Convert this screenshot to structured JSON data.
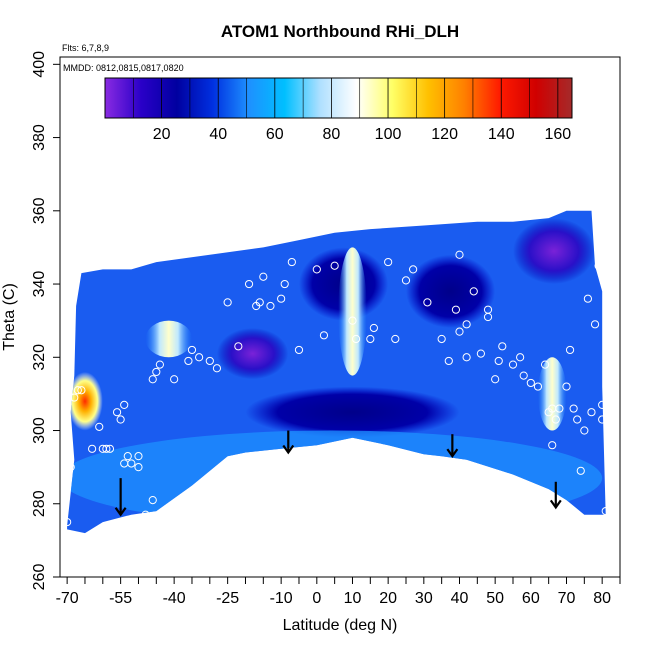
{
  "chart_data": {
    "type": "heatmap",
    "title": "ATOM1 Northbound RHi_DLH",
    "annotations": {
      "flights": "Flts: 6,7,8,9",
      "dates": "MMDD: 0812,0815,0817,0820"
    },
    "xlabel": "Latitude (deg N)",
    "ylabel": "Theta (C)",
    "xlim": [
      -72,
      85
    ],
    "ylim": [
      260,
      402
    ],
    "xticks": [
      -70,
      -55,
      -40,
      -25,
      -10,
      0,
      10,
      20,
      30,
      40,
      50,
      60,
      70,
      80
    ],
    "xtick_labels": [
      "-70",
      "-55",
      "-40",
      "-25",
      "-10",
      "0",
      "10",
      "20",
      "30",
      "40",
      "50",
      "60",
      "70",
      "80"
    ],
    "xminor_ticks": [
      -65,
      -60,
      -50,
      -45,
      -35,
      -30,
      -20,
      -15,
      -5,
      5,
      15,
      25,
      35,
      45,
      55,
      65,
      75,
      85
    ],
    "yticks": [
      260,
      280,
      300,
      320,
      340,
      360,
      380,
      400
    ],
    "ytick_labels": [
      "260",
      "280",
      "300",
      "320",
      "340",
      "360",
      "380",
      "400"
    ],
    "colorbar": {
      "min": 0,
      "max": 165,
      "ticks": [
        20,
        40,
        60,
        80,
        100,
        120,
        140,
        160
      ],
      "tick_labels": [
        "20",
        "40",
        "60",
        "80",
        "100",
        "120",
        "140",
        "160"
      ],
      "colors": [
        "#8a2be2",
        "#2a00c8",
        "#0000a0",
        "#0030e0",
        "#1e90ff",
        "#00bfff",
        "#b0e0ff",
        "#ffffff",
        "#ffff66",
        "#ffc000",
        "#ff8000",
        "#ff1a00",
        "#d00000",
        "#a52a2a"
      ]
    },
    "field_outline": {
      "top": [
        [
          -68,
          315
        ],
        [
          -67.5,
          334
        ],
        [
          -66,
          343
        ],
        [
          -60,
          344
        ],
        [
          -52,
          344
        ],
        [
          -45,
          346
        ],
        [
          -30,
          348
        ],
        [
          -15,
          350
        ],
        [
          -5,
          352
        ],
        [
          5,
          354
        ],
        [
          15,
          355
        ],
        [
          30,
          356
        ],
        [
          45,
          357
        ],
        [
          55,
          357
        ],
        [
          65,
          358
        ],
        [
          70,
          360
        ],
        [
          77,
          360
        ],
        [
          78,
          345
        ],
        [
          80,
          338
        ],
        [
          80,
          312
        ]
      ],
      "bottom": [
        [
          80,
          312
        ],
        [
          81,
          277
        ],
        [
          75,
          277
        ],
        [
          70,
          281
        ],
        [
          65,
          284
        ],
        [
          55,
          288
        ],
        [
          42,
          292
        ],
        [
          35,
          293
        ],
        [
          30,
          293.5
        ],
        [
          20,
          296
        ],
        [
          10,
          298
        ],
        [
          0,
          296
        ],
        [
          -10,
          295
        ],
        [
          -20,
          294
        ],
        [
          -25,
          293
        ],
        [
          -35,
          285
        ],
        [
          -45,
          278
        ],
        [
          -52,
          277
        ],
        [
          -60,
          275
        ],
        [
          -65,
          272
        ],
        [
          -70,
          273
        ],
        [
          -70,
          274
        ],
        [
          -68,
          292
        ],
        [
          -69,
          305
        ],
        [
          -68,
          315
        ]
      ]
    },
    "field_features": [
      {
        "kind": "low-rhi",
        "x": [
          -28,
          -8
        ],
        "y": [
          314,
          328
        ],
        "value": 5
      },
      {
        "kind": "low-rhi",
        "x": [
          -20,
          40
        ],
        "y": [
          298,
          312
        ],
        "value": 12
      },
      {
        "kind": "low-rhi",
        "x": [
          -5,
          20
        ],
        "y": [
          330,
          350
        ],
        "value": 18
      },
      {
        "kind": "low-rhi",
        "x": [
          25,
          50
        ],
        "y": [
          328,
          348
        ],
        "value": 18
      },
      {
        "kind": "low-rhi",
        "x": [
          55,
          78
        ],
        "y": [
          340,
          358
        ],
        "value": 8
      },
      {
        "kind": "moderate",
        "x": [
          -72,
          80
        ],
        "y": [
          274,
          300
        ],
        "value": 55
      },
      {
        "kind": "near-saturation",
        "x": [
          6,
          14
        ],
        "y": [
          315,
          350
        ],
        "value": 100
      },
      {
        "kind": "near-saturation",
        "x": [
          -48,
          -35
        ],
        "y": [
          320,
          330
        ],
        "value": 105
      },
      {
        "kind": "supersaturated",
        "x": [
          -70,
          -60
        ],
        "y": [
          300,
          316
        ],
        "value": 150
      },
      {
        "kind": "near-saturation",
        "x": [
          62,
          70
        ],
        "y": [
          300,
          320
        ],
        "value": 95
      }
    ],
    "sample_points": [
      [
        -70,
        275
      ],
      [
        -69,
        290
      ],
      [
        -68,
        309
      ],
      [
        -67,
        311
      ],
      [
        -66,
        311
      ],
      [
        -63,
        295
      ],
      [
        -61,
        301
      ],
      [
        -60,
        295
      ],
      [
        -59,
        295
      ],
      [
        -58,
        295
      ],
      [
        -56,
        305
      ],
      [
        -55,
        303
      ],
      [
        -54,
        307
      ],
      [
        -54,
        291
      ],
      [
        -53,
        293
      ],
      [
        -52,
        291
      ],
      [
        -50,
        290
      ],
      [
        -50,
        293
      ],
      [
        -48,
        277
      ],
      [
        -46,
        281
      ],
      [
        -44,
        276
      ],
      [
        -42,
        275
      ],
      [
        -46,
        314
      ],
      [
        -45,
        316
      ],
      [
        -44,
        318
      ],
      [
        -40,
        314
      ],
      [
        -36,
        319
      ],
      [
        -35,
        322
      ],
      [
        -33,
        320
      ],
      [
        -30,
        319
      ],
      [
        -28,
        317
      ],
      [
        -25,
        335
      ],
      [
        -22,
        323
      ],
      [
        -19,
        340
      ],
      [
        -17,
        334
      ],
      [
        -16,
        335
      ],
      [
        -15,
        342
      ],
      [
        -13,
        334
      ],
      [
        -10,
        336
      ],
      [
        -9,
        340
      ],
      [
        -7,
        346
      ],
      [
        -5,
        322
      ],
      [
        0,
        344
      ],
      [
        2,
        326
      ],
      [
        5,
        345
      ],
      [
        10,
        330
      ],
      [
        11,
        325
      ],
      [
        15,
        325
      ],
      [
        16,
        328
      ],
      [
        20,
        346
      ],
      [
        22,
        325
      ],
      [
        25,
        341
      ],
      [
        27,
        344
      ],
      [
        31,
        335
      ],
      [
        35,
        325
      ],
      [
        37,
        319
      ],
      [
        39,
        333
      ],
      [
        40,
        327
      ],
      [
        40,
        348
      ],
      [
        42,
        320
      ],
      [
        42,
        329
      ],
      [
        44,
        338
      ],
      [
        46,
        321
      ],
      [
        48,
        331
      ],
      [
        48,
        333
      ],
      [
        50,
        314
      ],
      [
        51,
        319
      ],
      [
        52,
        323
      ],
      [
        55,
        318
      ],
      [
        57,
        320
      ],
      [
        58,
        315
      ],
      [
        60,
        313
      ],
      [
        62,
        312
      ],
      [
        64,
        318
      ],
      [
        65,
        305
      ],
      [
        66,
        306
      ],
      [
        66,
        296
      ],
      [
        67,
        303
      ],
      [
        68,
        306
      ],
      [
        70,
        312
      ],
      [
        71,
        322
      ],
      [
        72,
        306
      ],
      [
        73,
        303
      ],
      [
        74,
        289
      ],
      [
        75,
        300
      ],
      [
        76,
        336
      ],
      [
        77,
        305
      ],
      [
        78,
        329
      ],
      [
        79,
        345
      ],
      [
        80,
        303
      ],
      [
        80,
        307
      ],
      [
        81,
        278
      ]
    ],
    "arrows": [
      {
        "x": -55,
        "y_from": 287,
        "y_to": 277
      },
      {
        "x": -8,
        "y_from": 300,
        "y_to": 294
      },
      {
        "x": 38,
        "y_from": 299,
        "y_to": 293
      },
      {
        "x": 67,
        "y_from": 286,
        "y_to": 279
      }
    ]
  }
}
